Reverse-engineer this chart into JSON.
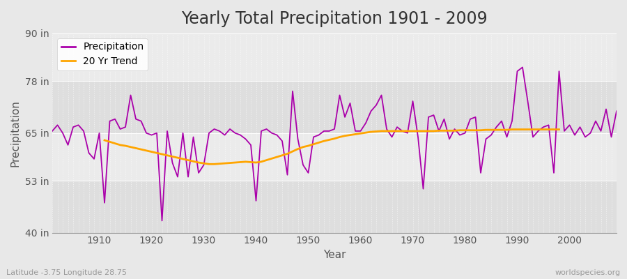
{
  "title": "Yearly Total Precipitation 1901 - 2009",
  "xlabel": "Year",
  "ylabel": "Precipitation",
  "years": [
    1901,
    1902,
    1903,
    1904,
    1905,
    1906,
    1907,
    1908,
    1909,
    1910,
    1911,
    1912,
    1913,
    1914,
    1915,
    1916,
    1917,
    1918,
    1919,
    1920,
    1921,
    1922,
    1923,
    1924,
    1925,
    1926,
    1927,
    1928,
    1929,
    1930,
    1931,
    1932,
    1933,
    1934,
    1935,
    1936,
    1937,
    1938,
    1939,
    1940,
    1941,
    1942,
    1943,
    1944,
    1945,
    1946,
    1947,
    1948,
    1949,
    1950,
    1951,
    1952,
    1953,
    1954,
    1955,
    1956,
    1957,
    1958,
    1959,
    1960,
    1961,
    1962,
    1963,
    1964,
    1965,
    1966,
    1967,
    1968,
    1969,
    1970,
    1971,
    1972,
    1973,
    1974,
    1975,
    1976,
    1977,
    1978,
    1979,
    1980,
    1981,
    1982,
    1983,
    1984,
    1985,
    1986,
    1987,
    1988,
    1989,
    1990,
    1991,
    1992,
    1993,
    1994,
    1995,
    1996,
    1997,
    1998,
    1999,
    2000,
    2001,
    2002,
    2003,
    2004,
    2005,
    2006,
    2007,
    2008,
    2009
  ],
  "precipitation": [
    65.5,
    67.0,
    65.0,
    62.0,
    66.5,
    67.0,
    65.5,
    60.0,
    58.5,
    65.0,
    47.5,
    68.0,
    68.5,
    66.0,
    66.5,
    74.5,
    68.5,
    68.0,
    65.0,
    64.5,
    65.0,
    43.0,
    65.5,
    57.5,
    54.0,
    65.0,
    54.0,
    64.0,
    55.0,
    57.0,
    65.0,
    66.0,
    65.5,
    64.5,
    66.0,
    65.0,
    64.5,
    63.5,
    62.0,
    48.0,
    65.5,
    66.0,
    65.0,
    64.5,
    63.0,
    54.5,
    75.5,
    63.5,
    57.0,
    55.0,
    64.0,
    64.5,
    65.5,
    65.5,
    66.0,
    74.5,
    69.0,
    72.5,
    65.5,
    65.5,
    67.5,
    70.5,
    72.0,
    74.5,
    66.0,
    64.0,
    66.5,
    65.5,
    65.0,
    73.0,
    64.0,
    51.0,
    69.0,
    69.5,
    65.5,
    68.5,
    63.5,
    66.0,
    64.5,
    65.0,
    68.5,
    69.0,
    55.0,
    63.5,
    64.5,
    66.5,
    68.0,
    64.0,
    68.0,
    80.5,
    81.5,
    73.0,
    64.0,
    65.5,
    66.5,
    67.0,
    55.0,
    80.5,
    65.5,
    67.0,
    64.5,
    66.5,
    64.0,
    65.0,
    68.0,
    65.5,
    71.0,
    64.0,
    70.5
  ],
  "trend": [
    null,
    null,
    null,
    null,
    null,
    null,
    null,
    null,
    null,
    null,
    63.2,
    62.8,
    62.4,
    62.0,
    61.8,
    61.5,
    61.2,
    60.9,
    60.6,
    60.3,
    60.0,
    59.7,
    59.4,
    59.1,
    58.8,
    58.5,
    58.2,
    57.9,
    57.6,
    57.4,
    57.2,
    57.2,
    57.3,
    57.4,
    57.5,
    57.6,
    57.7,
    57.8,
    57.7,
    57.6,
    57.8,
    58.2,
    58.6,
    59.0,
    59.4,
    59.8,
    60.4,
    61.0,
    61.5,
    61.8,
    62.2,
    62.6,
    63.0,
    63.3,
    63.6,
    64.0,
    64.3,
    64.5,
    64.7,
    64.9,
    65.1,
    65.3,
    65.4,
    65.5,
    65.5,
    65.5,
    65.5,
    65.5,
    65.5,
    65.5,
    65.5,
    65.5,
    65.5,
    65.5,
    65.6,
    65.6,
    65.6,
    65.6,
    65.7,
    65.7,
    65.7,
    65.7,
    65.7,
    65.8,
    65.8,
    65.8,
    65.8,
    65.8,
    65.9,
    65.9,
    65.9,
    65.9,
    65.9,
    65.9,
    65.9,
    65.9,
    65.9,
    65.9,
    null,
    null,
    null,
    null,
    null,
    null,
    null,
    null,
    null,
    null,
    null
  ],
  "precip_color": "#AA00AA",
  "trend_color": "#FFA500",
  "bg_color": "#E8E8E8",
  "plot_bg_color": "#EBEBEB",
  "band_light": "#EBEBEB",
  "band_dark": "#DEDEDE",
  "grid_color": "#FFFFFF",
  "ylim": [
    40,
    90
  ],
  "yticks": [
    40,
    53,
    65,
    78,
    90
  ],
  "ytick_labels": [
    "40 in",
    "53 in",
    "65 in",
    "78 in",
    "90 in"
  ],
  "xlim": [
    1901,
    2009
  ],
  "xticks": [
    1910,
    1920,
    1930,
    1940,
    1950,
    1960,
    1970,
    1980,
    1990,
    2000
  ],
  "title_fontsize": 17,
  "label_fontsize": 11,
  "tick_fontsize": 10,
  "legend_fontsize": 10,
  "footer_left": "Latitude -3.75 Longitude 28.75",
  "footer_right": "worldspecies.org"
}
